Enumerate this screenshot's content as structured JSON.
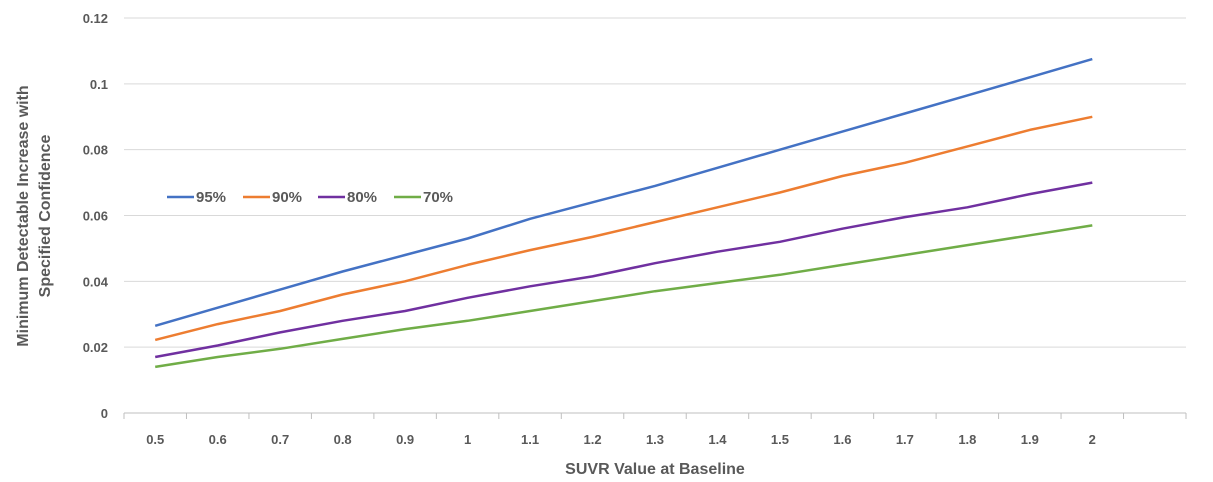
{
  "chart_data": {
    "type": "line",
    "categories": [
      "0.5",
      "0.6",
      "0.7",
      "0.8",
      "0.9",
      "1",
      "1.1",
      "1.2",
      "1.3",
      "1.4",
      "1.5",
      "1.6",
      "1.7",
      "1.8",
      "1.9",
      "2"
    ],
    "series": [
      {
        "name": "95%",
        "color": "#4472C4",
        "values": [
          0.0265,
          0.032,
          0.0375,
          0.043,
          0.048,
          0.053,
          0.059,
          0.064,
          0.069,
          0.0745,
          0.08,
          0.0855,
          0.091,
          0.0965,
          0.102,
          0.1075
        ]
      },
      {
        "name": "90%",
        "color": "#ED7D31",
        "values": [
          0.0222,
          0.027,
          0.031,
          0.036,
          0.04,
          0.045,
          0.0495,
          0.0535,
          0.058,
          0.0625,
          0.067,
          0.072,
          0.076,
          0.081,
          0.086,
          0.09
        ]
      },
      {
        "name": "80%",
        "color": "#7030A0",
        "values": [
          0.017,
          0.0205,
          0.0245,
          0.028,
          0.031,
          0.035,
          0.0385,
          0.0415,
          0.0455,
          0.049,
          0.052,
          0.056,
          0.0595,
          0.0625,
          0.0665,
          0.07
        ]
      },
      {
        "name": "70%",
        "color": "#70AD47",
        "values": [
          0.014,
          0.017,
          0.0195,
          0.0225,
          0.0255,
          0.028,
          0.031,
          0.034,
          0.037,
          0.0395,
          0.042,
          0.045,
          0.048,
          0.051,
          0.054,
          0.057
        ]
      }
    ],
    "yticks": [
      "0",
      "0.02",
      "0.04",
      "0.06",
      "0.08",
      "0.1",
      "0.12"
    ],
    "ylim": [
      0,
      0.12
    ],
    "xlabel": "SUVR Value at Baseline",
    "ylabel_line1": "Minimum Detectable Increase with",
    "ylabel_line2": "Specified Confidence",
    "grid": "horizontal",
    "legend_position": "left-middle"
  }
}
